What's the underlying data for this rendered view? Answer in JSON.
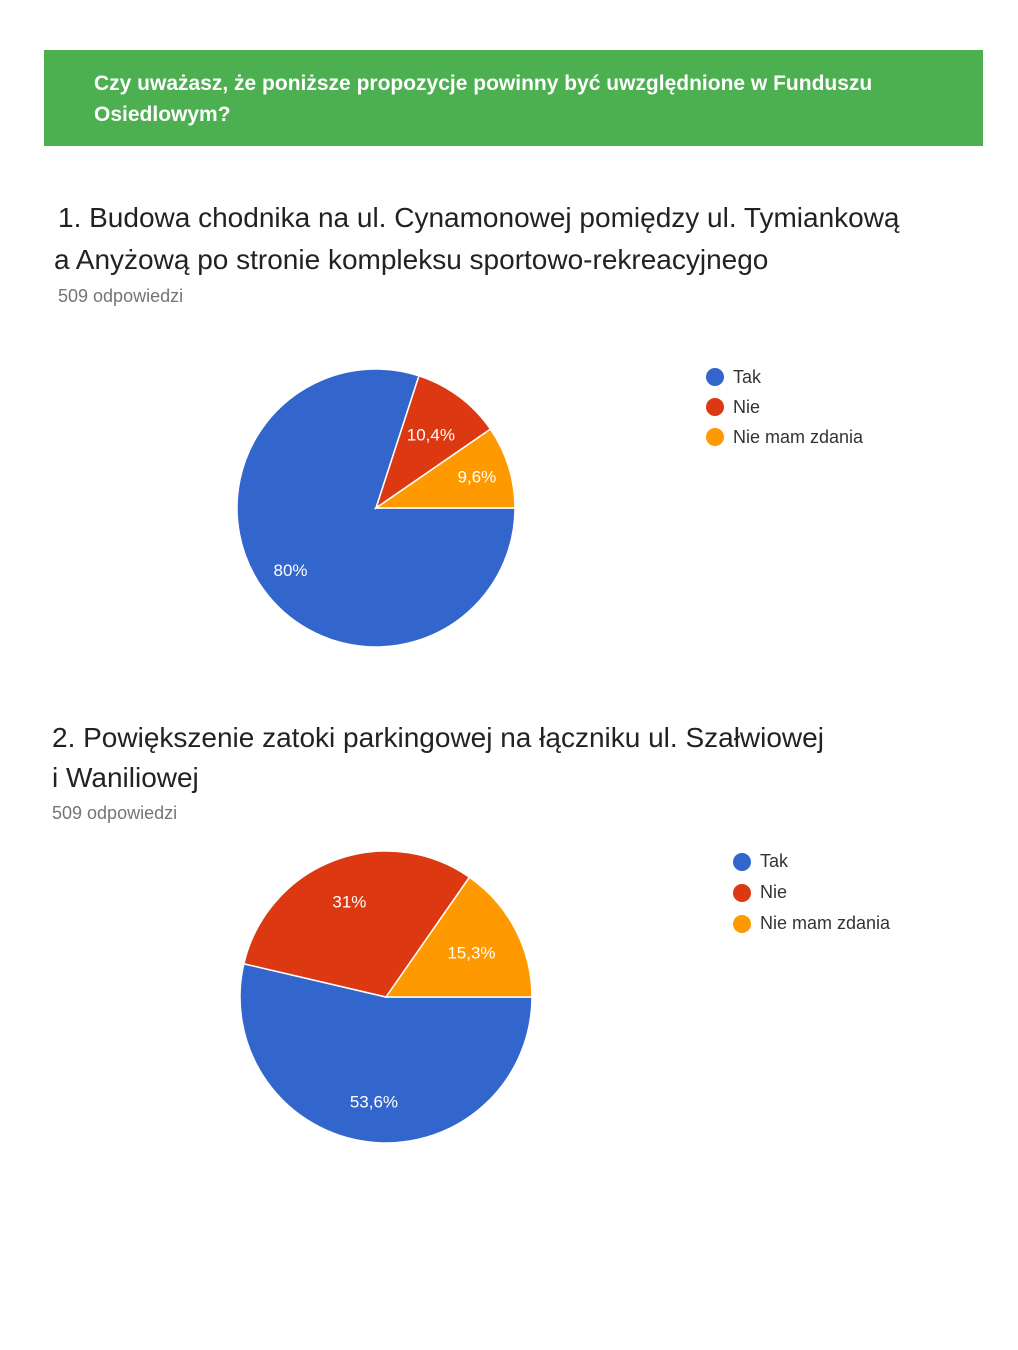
{
  "banner": {
    "question": "Czy uważasz, że poniższe propozycje powinny być uwzględnione w Funduszu Osiedlowym?"
  },
  "colors": {
    "Tak": "#3366cc",
    "Nie": "#dc3912",
    "Nie mam zdania": "#ff9900",
    "banner": "#4caf50"
  },
  "questions": [
    {
      "title_line1": "1. Budowa chodnika na ul. Cynamonowej pomiędzy ul. Tymiankową",
      "title_line2": "a  Anyżową po stronie kompleksu sportowo-rekreacyjnego",
      "responses": "509 odpowiedzi"
    },
    {
      "title_line1": "2. Powiększenie zatoki parkingowej na łączniku ul. Szałwiowej",
      "title_line2": "i Waniliowej",
      "responses": "509 odpowiedzi"
    }
  ],
  "chart_data": [
    {
      "type": "pie",
      "categories": [
        "Tak",
        "Nie",
        "Nie mam zdania"
      ],
      "values": [
        80,
        10.4,
        9.6
      ],
      "labels": [
        "80%",
        "10,4%",
        "9,6%"
      ],
      "legend": [
        "Tak",
        "Nie",
        "Nie mam zdania"
      ]
    },
    {
      "type": "pie",
      "categories": [
        "Tak",
        "Nie",
        "Nie mam zdania"
      ],
      "values": [
        53.6,
        31,
        15.3
      ],
      "labels": [
        "53,6%",
        "31%",
        "15,3%"
      ],
      "legend": [
        "Tak",
        "Nie",
        "Nie mam zdania"
      ]
    }
  ]
}
